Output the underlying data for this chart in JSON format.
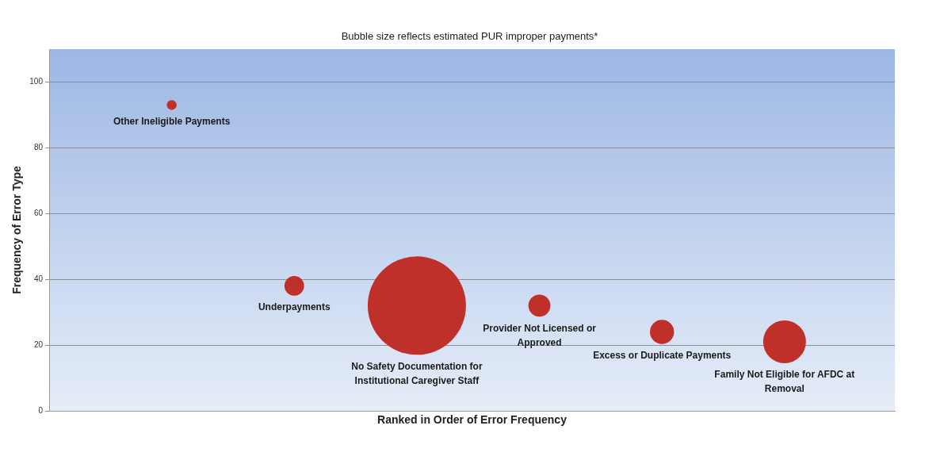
{
  "chart_data": {
    "type": "bubble",
    "title": "Bubble size reflects estimated PUR improper payments*",
    "xlabel": "Ranked in Order of Error Frequency",
    "ylabel": "Frequency of Error Type",
    "categories": [
      "Other Ineligible Payments",
      "Underpayments",
      "No Safety Documentation for Institutional Caregiver Staff",
      "Provider Not Licensed or Approved",
      "Excess or Duplicate Payments",
      "Family Not Eligible for AFDC at Removal"
    ],
    "series": [
      {
        "color": "#c0302a",
        "values": [
          93,
          38,
          32,
          32,
          24,
          21
        ],
        "sizes": [
          0.01,
          0.04,
          1,
          0.05,
          0.06,
          0.19
        ]
      }
    ],
    "ylim": [
      0,
      110
    ],
    "yticks": [
      0,
      20,
      40,
      60,
      80,
      100
    ],
    "grid": "y",
    "legend": false
  }
}
